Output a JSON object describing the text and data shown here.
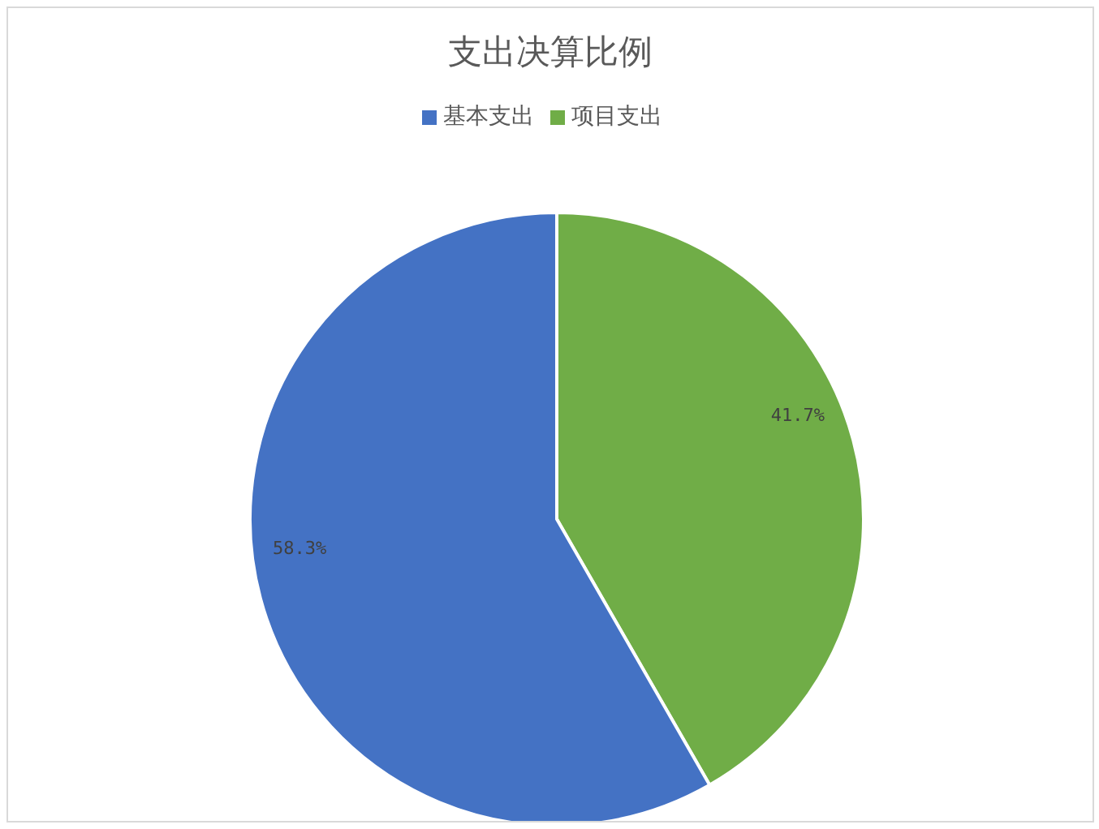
{
  "chart_data": {
    "type": "pie",
    "title": "支出决算比例",
    "categories": [
      "项目支出",
      "基本支出"
    ],
    "values": [
      41.7,
      58.3
    ],
    "colors": [
      "#70ad47",
      "#4472c4"
    ],
    "value_labels": [
      "41.7%",
      "58.3%"
    ],
    "legend": "top"
  }
}
